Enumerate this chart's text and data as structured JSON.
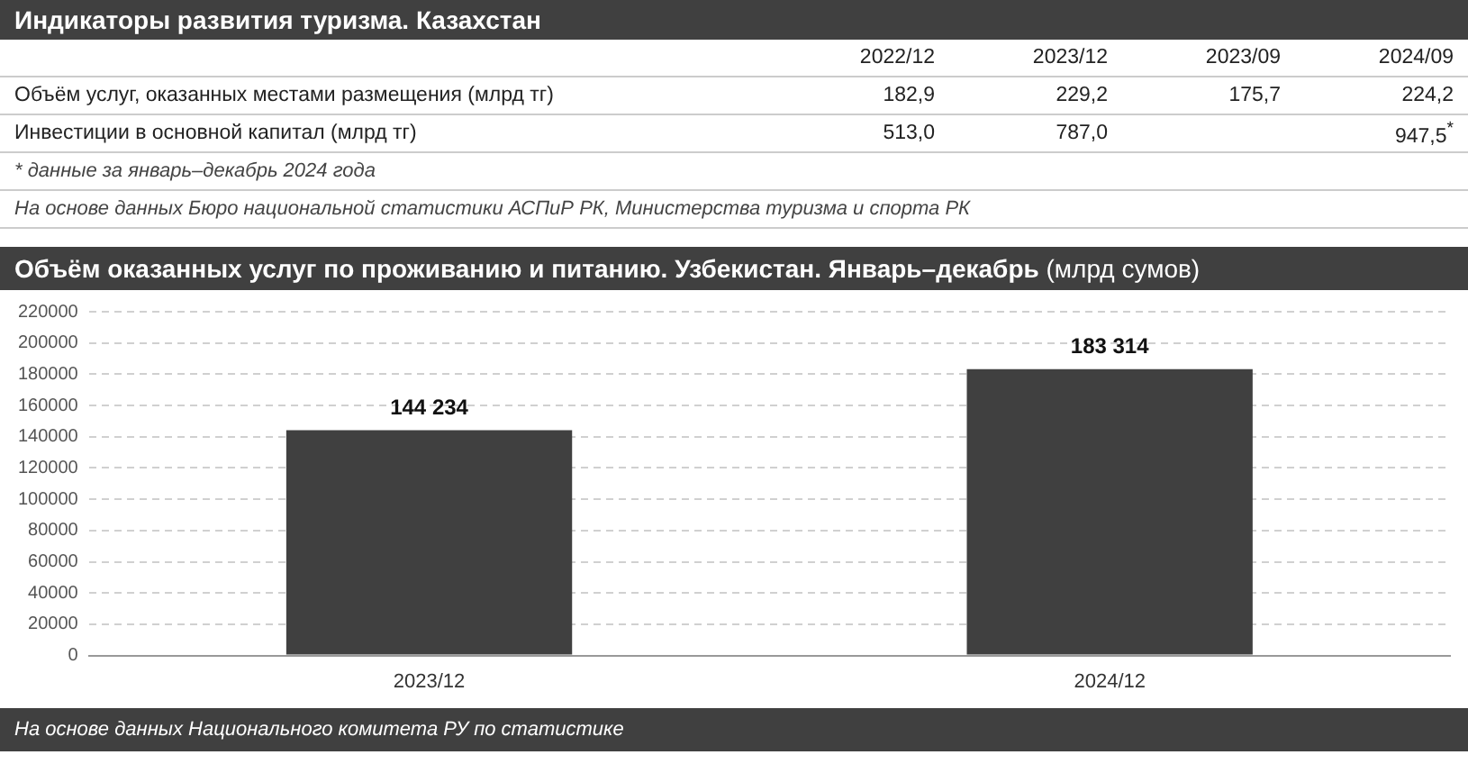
{
  "chart_data": [
    {
      "type": "other",
      "title": "Индикаторы развития туризма. Казахстан",
      "categories": [
        "2022/12",
        "2023/12",
        "2023/09",
        "2024/09"
      ],
      "series": [
        {
          "name": "Объём услуг, оказанных местами размещения (млрд тг)",
          "values": [
            182.9,
            229.2,
            175.7,
            224.2
          ],
          "value_labels": [
            "182,9",
            "229,2",
            "175,7",
            "224,2"
          ]
        },
        {
          "name": "Инвестиции в основной капитал (млрд тг)",
          "values": [
            513.0,
            787.0,
            null,
            947.5
          ],
          "value_labels": [
            "513,0",
            "787,0",
            null,
            "947,5$^{*}$"
          ]
        }
      ],
      "annotations": [
        "* данные за январь–декабрь 2024 года",
        "На основе данных Бюро национальной статистики АСПиР РК, Министерства туризма и спорта РК"
      ]
    },
    {
      "type": "bar",
      "title": "Объём оказанных услуг по проживанию и питанию. Узбекистан. Январь–декабрь",
      "subtitle": "(млрд сумов)",
      "categories": [
        "2023/12",
        "2024/12"
      ],
      "values": [
        144234,
        183314
      ],
      "value_labels": [
        "144 234",
        "183 314"
      ],
      "color": "#404040",
      "ylim": [
        0,
        220000
      ],
      "yticks": [
        0,
        20000,
        40000,
        60000,
        80000,
        100000,
        120000,
        140000,
        160000,
        180000,
        200000,
        220000
      ],
      "grid": "y",
      "annotations": [
        "На основе данных Национального комитета РУ по статистике"
      ]
    }
  ]
}
